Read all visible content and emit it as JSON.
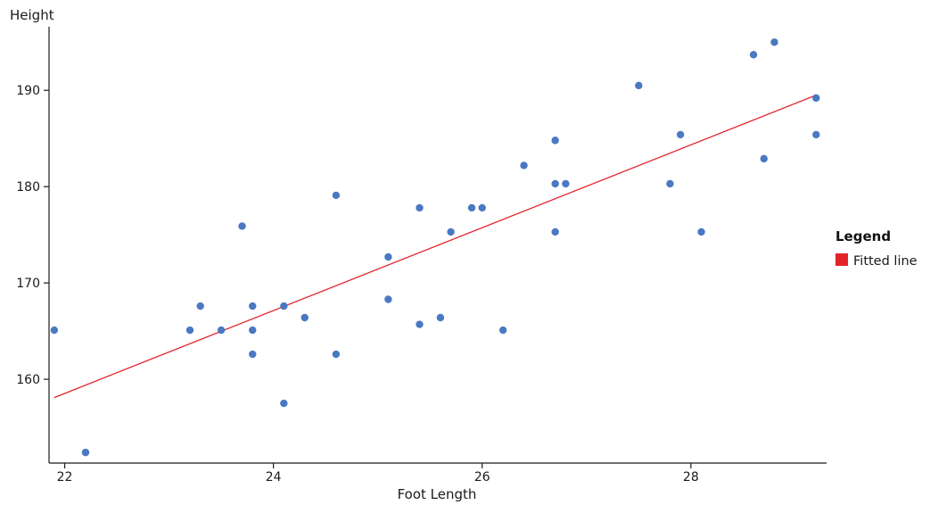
{
  "chart_data": {
    "type": "scatter",
    "xlabel": "Foot Length",
    "ylabel": "Height",
    "xlim": [
      21.85,
      29.3
    ],
    "ylim": [
      151.3,
      196.6
    ],
    "xticks": [
      22,
      24,
      26,
      28
    ],
    "yticks": [
      160,
      170,
      180,
      190
    ],
    "grid": false,
    "legend": {
      "title": "Legend",
      "position": "right",
      "entries": [
        {
          "label": "Fitted line",
          "color": "#e3242b"
        }
      ]
    },
    "points": [
      {
        "x": 21.9,
        "y": 165.1
      },
      {
        "x": 22.2,
        "y": 152.4
      },
      {
        "x": 23.2,
        "y": 165.1
      },
      {
        "x": 23.3,
        "y": 167.6
      },
      {
        "x": 23.5,
        "y": 165.1
      },
      {
        "x": 23.7,
        "y": 175.9
      },
      {
        "x": 23.8,
        "y": 167.6
      },
      {
        "x": 23.8,
        "y": 165.1
      },
      {
        "x": 23.8,
        "y": 162.6
      },
      {
        "x": 24.1,
        "y": 167.6
      },
      {
        "x": 24.1,
        "y": 157.5
      },
      {
        "x": 24.3,
        "y": 166.4
      },
      {
        "x": 24.6,
        "y": 179.1
      },
      {
        "x": 24.6,
        "y": 162.6
      },
      {
        "x": 25.1,
        "y": 172.7
      },
      {
        "x": 25.1,
        "y": 168.3
      },
      {
        "x": 25.4,
        "y": 177.8
      },
      {
        "x": 25.4,
        "y": 165.7
      },
      {
        "x": 25.6,
        "y": 166.4
      },
      {
        "x": 25.7,
        "y": 175.3
      },
      {
        "x": 25.9,
        "y": 177.8
      },
      {
        "x": 26.0,
        "y": 177.8
      },
      {
        "x": 26.2,
        "y": 165.1
      },
      {
        "x": 26.4,
        "y": 182.2
      },
      {
        "x": 26.7,
        "y": 184.8
      },
      {
        "x": 26.7,
        "y": 180.3
      },
      {
        "x": 26.7,
        "y": 175.3
      },
      {
        "x": 26.8,
        "y": 180.3
      },
      {
        "x": 27.5,
        "y": 190.5
      },
      {
        "x": 27.8,
        "y": 180.3
      },
      {
        "x": 27.9,
        "y": 185.4
      },
      {
        "x": 28.1,
        "y": 175.3
      },
      {
        "x": 28.6,
        "y": 193.7
      },
      {
        "x": 28.7,
        "y": 182.9
      },
      {
        "x": 28.8,
        "y": 195.0
      },
      {
        "x": 29.2,
        "y": 189.2
      },
      {
        "x": 29.2,
        "y": 185.4
      }
    ],
    "fitted_line": {
      "x": [
        21.9,
        29.2
      ],
      "y": [
        158.1,
        189.5
      ]
    },
    "colors": {
      "points": "#4a78c2",
      "fitted_line": "#e3242b",
      "axis": "#1a1a1a"
    }
  }
}
